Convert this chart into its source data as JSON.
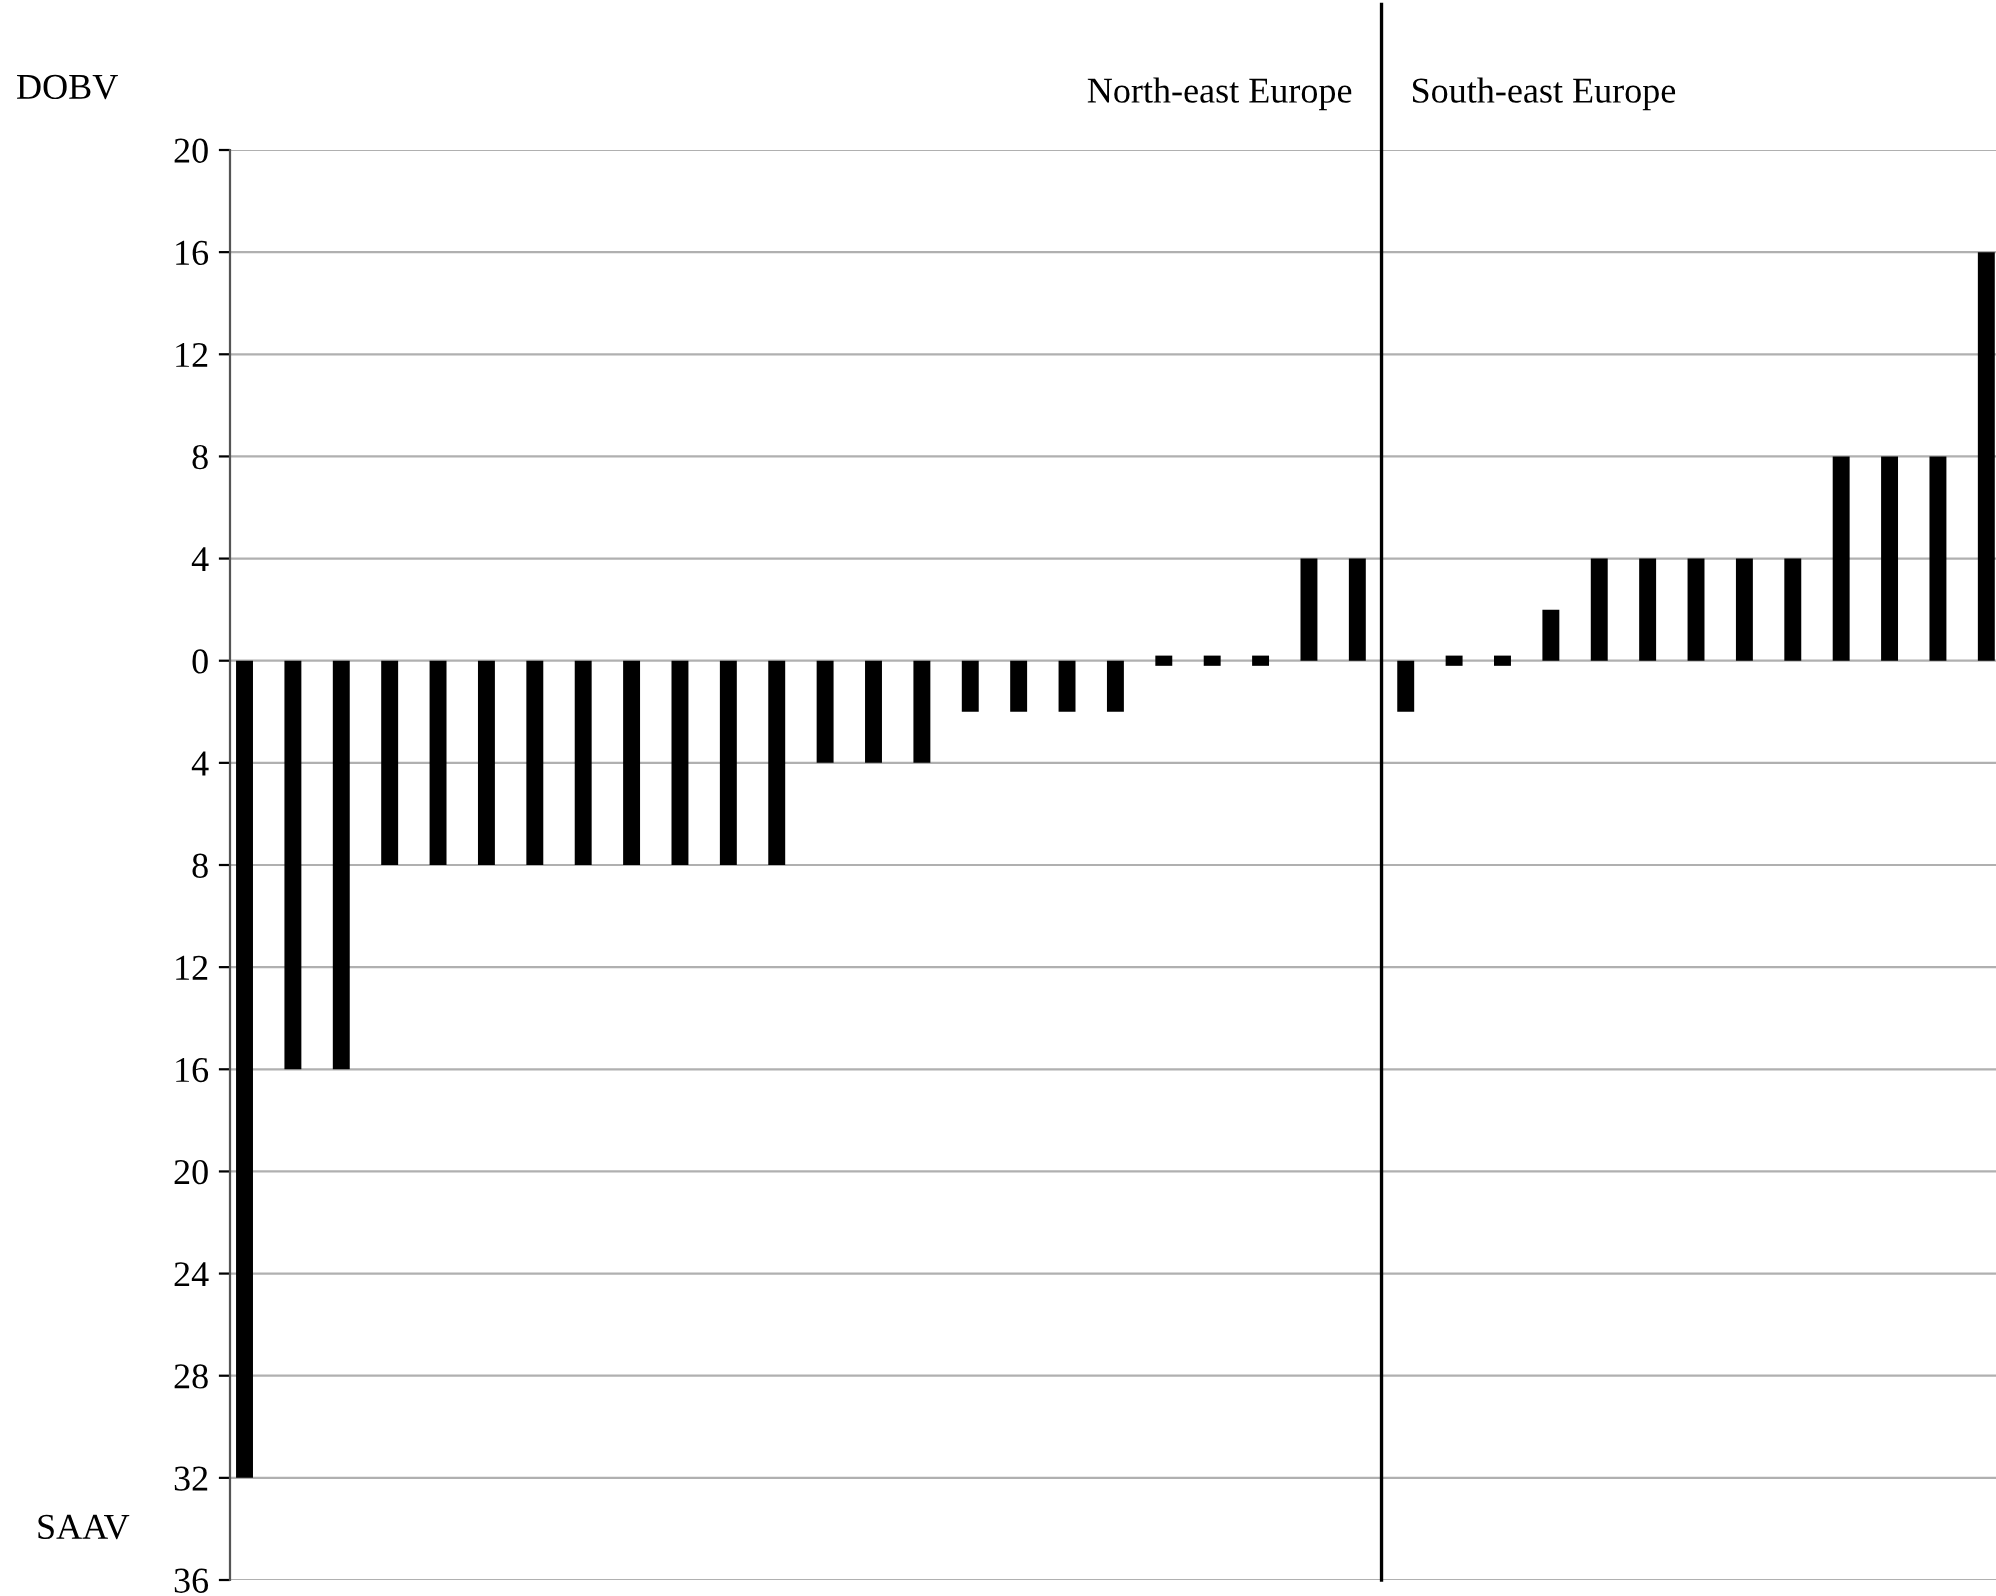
{
  "chart_data": {
    "type": "bar",
    "categories": [
      null,
      null,
      null,
      null,
      null,
      null,
      null,
      null,
      null,
      null,
      null,
      null,
      null,
      null,
      null,
      null,
      null,
      null,
      null,
      null,
      null,
      null,
      null,
      null,
      null,
      null,
      null,
      null,
      null,
      null,
      null,
      null,
      null,
      null,
      null,
      null,
      null
    ],
    "values": [
      -32,
      -16,
      -16,
      -8,
      -8,
      -8,
      -8,
      -8,
      -8,
      -8,
      -8,
      -8,
      -4,
      -4,
      -4,
      -2,
      -2,
      -2,
      -2,
      0.4,
      0.4,
      0.4,
      4,
      4,
      -2,
      0.4,
      0.4,
      2,
      4,
      4,
      4,
      4,
      4,
      8,
      8,
      8,
      16
    ],
    "base": [
      0,
      0,
      0,
      0,
      0,
      0,
      0,
      0,
      0,
      0,
      0,
      0,
      0,
      0,
      0,
      0,
      0,
      0,
      0,
      -0.2,
      -0.2,
      -0.2,
      0,
      0,
      0,
      -0.2,
      -0.2,
      0,
      0,
      0,
      0,
      0,
      0,
      0,
      0,
      0,
      0
    ],
    "color": "#000000",
    "ylim": [
      -36,
      20
    ],
    "yticks": [
      20,
      16,
      12,
      8,
      4,
      0,
      {
        "value": -4,
        "label": "4"
      },
      {
        "value": -8,
        "label": "8"
      },
      {
        "value": -12,
        "label": "12"
      },
      {
        "value": -16,
        "label": "16"
      },
      {
        "value": -20,
        "label": "20"
      },
      {
        "value": -24,
        "label": "24"
      },
      {
        "value": -28,
        "label": "28"
      },
      {
        "value": -32,
        "label": "32"
      },
      {
        "value": -36,
        "label": "36"
      }
    ],
    "grid": "y",
    "tick_labels": "y",
    "annotations": [
      "North-east Europe",
      "South-east Europe",
      "DOBV",
      "SAAV"
    ]
  }
}
